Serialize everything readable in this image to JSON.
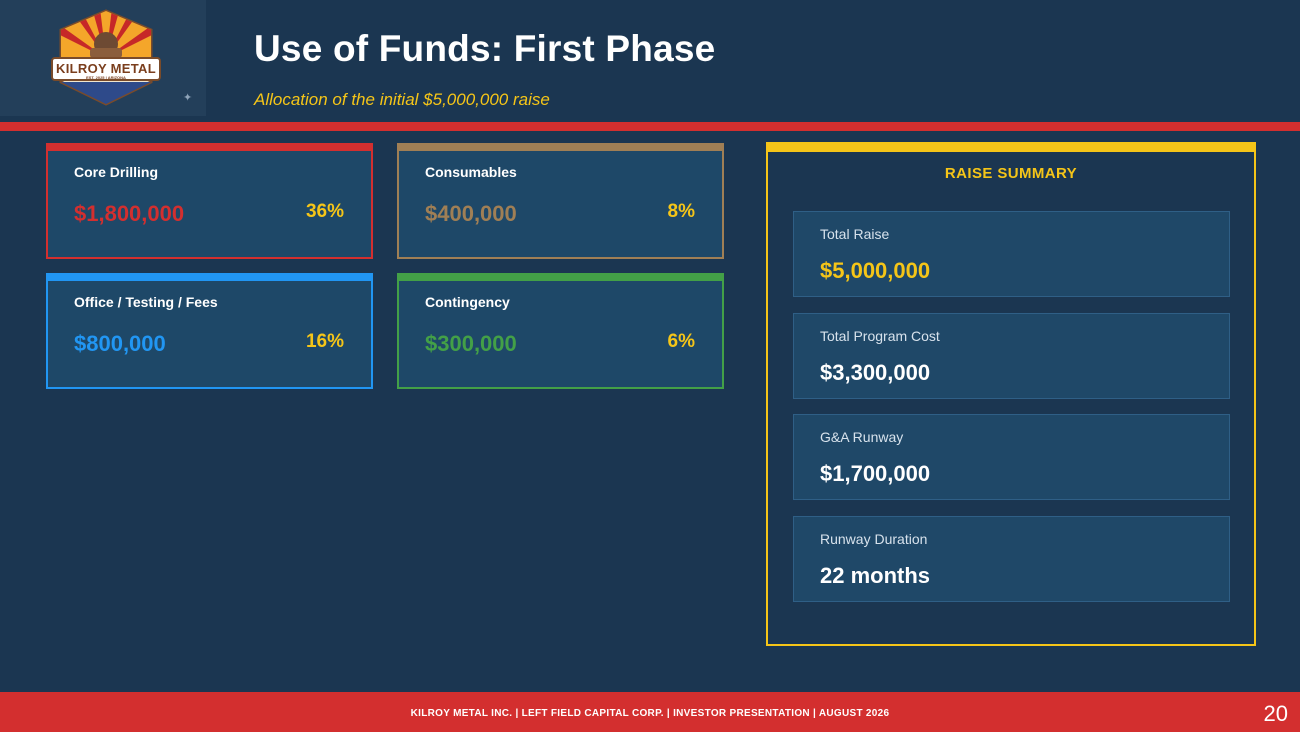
{
  "header": {
    "title": "Use of Funds: First Phase",
    "subtitle": "Allocation of the initial $5,000,000 raise",
    "logo_text": "KILROY METAL",
    "logo_subtext": "EST. 2025 | ARIZONA"
  },
  "cards": [
    {
      "label": "Core Drilling",
      "amount": "$1,800,000",
      "percent": "36%",
      "color": "#d32f2f"
    },
    {
      "label": "Consumables",
      "amount": "$400,000",
      "percent": "8%",
      "color": "#a07f55"
    },
    {
      "label": "Office / Testing / Fees",
      "amount": "$800,000",
      "percent": "16%",
      "color": "#2196f3"
    },
    {
      "label": "Contingency",
      "amount": "$300,000",
      "percent": "6%",
      "color": "#43a047"
    }
  ],
  "summary": {
    "title": "RAISE SUMMARY",
    "rows": [
      {
        "label": "Total Raise",
        "value": "$5,000,000"
      },
      {
        "label": "Total Program Cost",
        "value": "$3,300,000"
      },
      {
        "label": "G&A Runway",
        "value": "$1,700,000"
      },
      {
        "label": "Runway Duration",
        "value": "22 months"
      }
    ]
  },
  "footer": {
    "text": "KILROY METAL INC. | LEFT FIELD CAPITAL CORP. | INVESTOR PRESENTATION | AUGUST 2026",
    "page_number": "20"
  },
  "colors": {
    "background": "#1b3651",
    "accent_red": "#d32f2f",
    "accent_gold": "#f5c518"
  }
}
